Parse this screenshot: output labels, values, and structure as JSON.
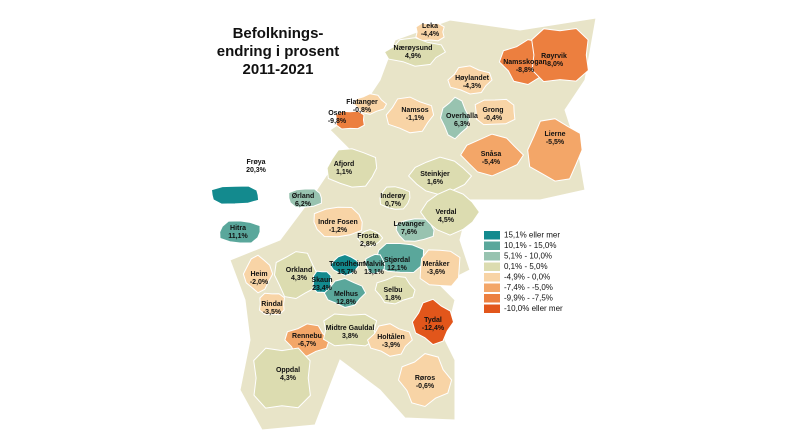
{
  "title": [
    "Befolknings-",
    "endring i prosent",
    "2011-2021"
  ],
  "legend": [
    {
      "label": "15,1%  eller mer",
      "color": "#138a8e"
    },
    {
      "label": "10,1% - 15,0%",
      "color": "#5aa79b"
    },
    {
      "label": "5,1% - 10,0%",
      "color": "#98c3b0"
    },
    {
      "label": "0,1% - 5,0%",
      "color": "#dcdcb0"
    },
    {
      "label": "-4,9% - 0,0%",
      "color": "#f8d4a6"
    },
    {
      "label": "-7,4% - -5,0%",
      "color": "#f3a668"
    },
    {
      "label": "-9,9% - -7,5%",
      "color": "#ec7f3f"
    },
    {
      "label": " -10,0% eller mer",
      "color": "#e2561b"
    }
  ],
  "regions": [
    {
      "name": "Leka",
      "label": "-4,4%",
      "color": "#f8d4a6"
    },
    {
      "name": "Nærøysund",
      "label": "4,9%",
      "color": "#dcdcb0"
    },
    {
      "name": "Namsskogan",
      "label": "-8,8%",
      "color": "#ec7f3f"
    },
    {
      "name": "Røyrvik",
      "label": "-8,0%",
      "color": "#ec7f3f"
    },
    {
      "name": "Høylandet",
      "label": "-4,3%",
      "color": "#f8d4a6"
    },
    {
      "name": "Flatanger",
      "label": "-0,8%",
      "color": "#f8d4a6"
    },
    {
      "name": "Osen",
      "label": "-9,8%",
      "color": "#ec7f3f"
    },
    {
      "name": "Namsos",
      "label": "-1,1%",
      "color": "#f8d4a6"
    },
    {
      "name": "Overhalla",
      "label": "6,3%",
      "color": "#98c3b0"
    },
    {
      "name": "Grong",
      "label": "-0,4%",
      "color": "#f8d4a6"
    },
    {
      "name": "Lierne",
      "label": "-5,5%",
      "color": "#f3a668"
    },
    {
      "name": "Snåsa",
      "label": "-5,4%",
      "color": "#f3a668"
    },
    {
      "name": "Frøya",
      "label": "20,3%",
      "color": "#138a8e"
    },
    {
      "name": "Afjord",
      "label": "1,1%",
      "color": "#dcdcb0"
    },
    {
      "name": "Steinkjer",
      "label": "1,6%",
      "color": "#dcdcb0"
    },
    {
      "name": "Ørland",
      "label": "6,2%",
      "color": "#98c3b0"
    },
    {
      "name": "Inderøy",
      "label": "0,7%",
      "color": "#dcdcb0"
    },
    {
      "name": "Verdal",
      "label": "4,5%",
      "color": "#dcdcb0"
    },
    {
      "name": "Indre Fosen",
      "label": "-1,2%",
      "color": "#f8d4a6"
    },
    {
      "name": "Hitra",
      "label": "11,1%",
      "color": "#5aa79b"
    },
    {
      "name": "Frosta",
      "label": "2,8%",
      "color": "#dcdcb0"
    },
    {
      "name": "Levanger",
      "label": "7,6%",
      "color": "#98c3b0"
    },
    {
      "name": "Stjørdal",
      "label": "12,1%",
      "color": "#5aa79b"
    },
    {
      "name": "Trondheim",
      "label": "15,7%",
      "color": "#138a8e"
    },
    {
      "name": "Malvik",
      "label": "13,1%",
      "color": "#5aa79b"
    },
    {
      "name": "Meråker",
      "label": "-3,6%",
      "color": "#f8d4a6"
    },
    {
      "name": "Heim",
      "label": "-2,0%",
      "color": "#f8d4a6"
    },
    {
      "name": "Orkland",
      "label": "4,3%",
      "color": "#dcdcb0"
    },
    {
      "name": "Skaun",
      "label": "23,4%",
      "color": "#138a8e"
    },
    {
      "name": "Melhus",
      "label": "12,8%",
      "color": "#5aa79b"
    },
    {
      "name": "Selbu",
      "label": "1,8%",
      "color": "#dcdcb0"
    },
    {
      "name": "Rindal",
      "label": "-3,5%",
      "color": "#f8d4a6"
    },
    {
      "name": "Tydal",
      "label": "-12,4%",
      "color": "#e2561b"
    },
    {
      "name": "Rennebu",
      "label": "-6,7%",
      "color": "#f3a668"
    },
    {
      "name": "Midtre Gauldal",
      "label": "3,8%",
      "color": "#dcdcb0"
    },
    {
      "name": "Holtålen",
      "label": "-3,9%",
      "color": "#f8d4a6"
    },
    {
      "name": "Røros",
      "label": "-0,6%",
      "color": "#f8d4a6"
    },
    {
      "name": "Oppdal",
      "label": "4,3%",
      "color": "#dcdcb0"
    }
  ]
}
